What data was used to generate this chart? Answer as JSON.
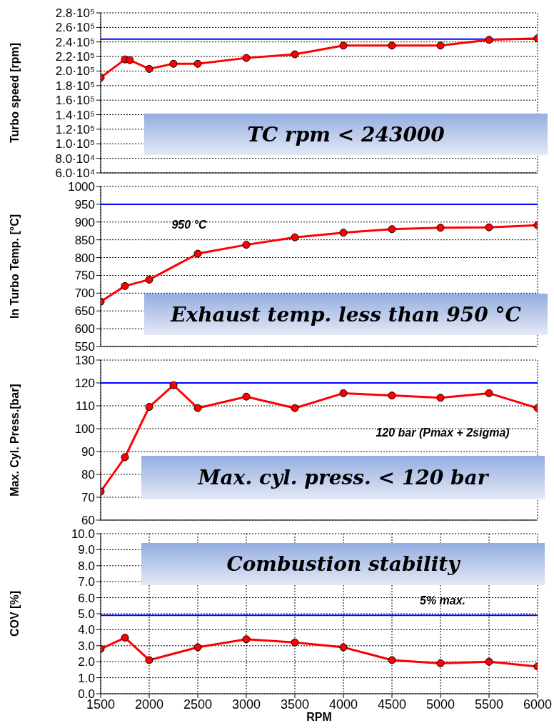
{
  "chart_data": [
    {
      "type": "line",
      "ylabel": "Turbo speed [rpm]",
      "x": [
        1500,
        1750,
        1800,
        2000,
        2250,
        2500,
        3000,
        3500,
        4000,
        4500,
        5000,
        5500,
        6000
      ],
      "series": [
        {
          "color": "#ff0000",
          "values": [
            191000,
            216000,
            215000,
            203000,
            210000,
            210000,
            218000,
            223000,
            235000,
            235000,
            235000,
            243000,
            245000
          ]
        }
      ],
      "xlim": [
        1500,
        6000
      ],
      "xticks": [
        1500,
        2000,
        2500,
        3000,
        3500,
        4000,
        4500,
        5000,
        5500,
        6000
      ],
      "ylim": [
        60000,
        280000
      ],
      "yticks": [
        {
          "value": 60000,
          "label": "6.0·10⁴"
        },
        {
          "value": 80000,
          "label": "8.0·10⁴"
        },
        {
          "value": 100000,
          "label": "1.0·10⁵"
        },
        {
          "value": 120000,
          "label": "1.2·10⁵"
        },
        {
          "value": 140000,
          "label": "1.4·10⁵"
        },
        {
          "value": 160000,
          "label": "1.6·10⁵"
        },
        {
          "value": 180000,
          "label": "1.8·10⁵"
        },
        {
          "value": 200000,
          "label": "2.0·10⁵"
        },
        {
          "value": 220000,
          "label": "2.2·10⁵"
        },
        {
          "value": 240000,
          "label": "2.4·10⁵"
        },
        {
          "value": 260000,
          "label": "2.6·10⁵"
        },
        {
          "value": 280000,
          "label": "2.8·10⁵"
        }
      ],
      "ref_lines": [
        {
          "axis": "y",
          "value": 244000,
          "color": "#0000ff"
        }
      ],
      "annotations": [
        "TC rpm <  243000"
      ],
      "grid": true,
      "marker": "circle",
      "line_style": "solid",
      "tick_labels": "y"
    },
    {
      "type": "line",
      "ylabel": "In Turbo Temp. [°C]",
      "x": [
        1500,
        1750,
        2000,
        2500,
        3000,
        3500,
        4000,
        4500,
        5000,
        5500,
        6000
      ],
      "series": [
        {
          "color": "#ff0000",
          "values": [
            676,
            720,
            738,
            811,
            836,
            857,
            870,
            880,
            884,
            885,
            891
          ]
        }
      ],
      "xlim": [
        1500,
        6000
      ],
      "xticks": [
        1500,
        2000,
        2500,
        3000,
        3500,
        4000,
        4500,
        5000,
        5500,
        6000
      ],
      "ylim": [
        550,
        1000
      ],
      "yticks": [
        550,
        600,
        650,
        700,
        750,
        800,
        850,
        900,
        950,
        1000
      ],
      "ref_lines": [
        {
          "axis": "y",
          "value": 950,
          "color": "#0000ff"
        }
      ],
      "annotations": [
        "Exhaust temp. less than 950 °C",
        "950 °C"
      ],
      "grid": true,
      "marker": "circle",
      "line_style": "solid",
      "tick_labels": "y"
    },
    {
      "type": "line",
      "ylabel": "Max. Cyl. Press.[bar]",
      "x": [
        1500,
        1750,
        2000,
        2250,
        2500,
        3000,
        3500,
        4000,
        4500,
        5000,
        5500,
        6000
      ],
      "series": [
        {
          "color": "#ff0000",
          "values": [
            72.5,
            87.5,
            109.5,
            119,
            109,
            114,
            109,
            115.5,
            114.5,
            113.5,
            115.5,
            109
          ]
        }
      ],
      "xlim": [
        1500,
        6000
      ],
      "xticks": [
        1500,
        2000,
        2500,
        3000,
        3500,
        4000,
        4500,
        5000,
        5500,
        6000
      ],
      "ylim": [
        60,
        130
      ],
      "yticks": [
        60,
        70,
        80,
        90,
        100,
        110,
        120,
        130
      ],
      "ref_lines": [
        {
          "axis": "y",
          "value": 120,
          "color": "#0000ff"
        }
      ],
      "annotations": [
        "Max. cyl. press. < 120 bar",
        "120 bar (Pmax + 2sigma)"
      ],
      "grid": true,
      "marker": "circle",
      "line_style": "solid",
      "tick_labels": "y"
    },
    {
      "type": "line",
      "ylabel": "COV [%]",
      "xlabel": "RPM",
      "x": [
        1500,
        1750,
        2000,
        2500,
        3000,
        3500,
        4000,
        4500,
        5000,
        5500,
        6000
      ],
      "series": [
        {
          "color": "#ff0000",
          "values": [
            2.8,
            3.5,
            2.1,
            2.9,
            3.4,
            3.2,
            2.9,
            2.1,
            1.9,
            2.0,
            1.7
          ]
        }
      ],
      "xlim": [
        1500,
        6000
      ],
      "xticks": [
        1500,
        2000,
        2500,
        3000,
        3500,
        4000,
        4500,
        5000,
        5500,
        6000
      ],
      "ylim": [
        0,
        10
      ],
      "yticks": [
        {
          "value": 0,
          "label": "0.0"
        },
        {
          "value": 1,
          "label": "1.0"
        },
        {
          "value": 2,
          "label": "2.0"
        },
        {
          "value": 3,
          "label": "3.0"
        },
        {
          "value": 4,
          "label": "4.0"
        },
        {
          "value": 5,
          "label": "5.0"
        },
        {
          "value": 6,
          "label": "6.0"
        },
        {
          "value": 7,
          "label": "7.0"
        },
        {
          "value": 8,
          "label": "8.0"
        },
        {
          "value": 9,
          "label": "9.0"
        },
        {
          "value": 10,
          "label": "10.0"
        }
      ],
      "ref_lines": [
        {
          "axis": "y",
          "value": 4.9,
          "color": "#0000ff"
        }
      ],
      "annotations": [
        "Combustion stability",
        "5% max."
      ],
      "grid": true,
      "marker": "circle",
      "line_style": "solid"
    }
  ]
}
